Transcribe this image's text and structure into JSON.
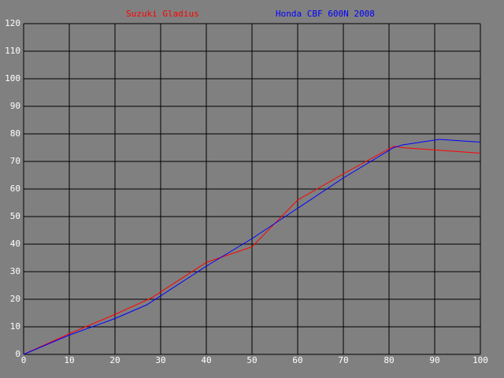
{
  "chart_data": {
    "type": "line",
    "series": [
      {
        "name": "Suzuki Gladius",
        "color": "#ff0000",
        "x": [
          0,
          10,
          20,
          28,
          40,
          50,
          60,
          70,
          81,
          83,
          100
        ],
        "values": [
          0,
          7.5,
          14.5,
          20.5,
          33.4,
          39,
          56,
          65.5,
          75.5,
          75,
          73
        ]
      },
      {
        "name": "Honda CBF 600N 2008",
        "color": "#0000ff",
        "x": [
          0,
          10,
          20,
          27,
          40,
          50,
          60,
          70,
          81,
          83,
          91,
          100
        ],
        "values": [
          0,
          7,
          13,
          18,
          32,
          42,
          53,
          64,
          75,
          76,
          78,
          77
        ]
      }
    ],
    "xlim": [
      0,
      100
    ],
    "xticks": [
      0,
      10,
      20,
      30,
      40,
      50,
      60,
      70,
      80,
      90,
      100
    ],
    "ylim": [
      0,
      120
    ],
    "yticks": [
      0,
      10,
      20,
      30,
      40,
      50,
      60,
      70,
      80,
      90,
      100,
      110,
      120
    ],
    "grid": true
  }
}
